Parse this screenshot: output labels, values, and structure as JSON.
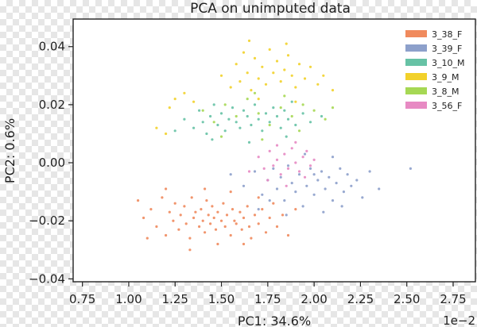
{
  "chart_data": {
    "type": "scatter",
    "title": "PCA on unimputed data",
    "xlabel": "PC1: 34.6%",
    "ylabel": "PC2: 0.6%",
    "x_offset_label": "1e−2",
    "xlim": [
      0.7,
      2.87
    ],
    "ylim": [
      -0.041,
      0.0495
    ],
    "xticks": [
      0.75,
      1.0,
      1.25,
      1.5,
      1.75,
      2.0,
      2.25,
      2.5,
      2.75
    ],
    "xtick_labels": [
      "0.75",
      "1.00",
      "1.25",
      "1.50",
      "1.75",
      "2.00",
      "2.25",
      "2.50",
      "2.75"
    ],
    "yticks": [
      -0.04,
      -0.02,
      0.0,
      0.02,
      0.04
    ],
    "ytick_labels": [
      "−0.04",
      "−0.02",
      "0.00",
      "0.02",
      "0.04"
    ],
    "grid": false,
    "legend_position": "top-right",
    "series": [
      {
        "name": "3_38_F",
        "color": "#f08a5d",
        "points": [
          [
            1.05,
            -0.013
          ],
          [
            1.08,
            -0.019
          ],
          [
            1.12,
            -0.016
          ],
          [
            1.15,
            -0.022
          ],
          [
            1.18,
            -0.012
          ],
          [
            1.2,
            -0.025
          ],
          [
            1.22,
            -0.017
          ],
          [
            1.24,
            -0.02
          ],
          [
            1.25,
            -0.014
          ],
          [
            1.27,
            -0.023
          ],
          [
            1.28,
            -0.018
          ],
          [
            1.3,
            -0.015
          ],
          [
            1.31,
            -0.021
          ],
          [
            1.33,
            -0.026
          ],
          [
            1.34,
            -0.012
          ],
          [
            1.35,
            -0.019
          ],
          [
            1.36,
            -0.017
          ],
          [
            1.38,
            -0.022
          ],
          [
            1.39,
            -0.016
          ],
          [
            1.4,
            -0.02
          ],
          [
            1.41,
            -0.024
          ],
          [
            1.42,
            -0.013
          ],
          [
            1.43,
            -0.018
          ],
          [
            1.44,
            -0.021
          ],
          [
            1.45,
            -0.015
          ],
          [
            1.46,
            -0.019
          ],
          [
            1.47,
            -0.023
          ],
          [
            1.48,
            -0.017
          ],
          [
            1.5,
            -0.02
          ],
          [
            1.51,
            -0.014
          ],
          [
            1.52,
            -0.022
          ],
          [
            1.53,
            -0.018
          ],
          [
            1.55,
            -0.025
          ],
          [
            1.56,
            -0.016
          ],
          [
            1.57,
            -0.02
          ],
          [
            1.58,
            -0.021
          ],
          [
            1.6,
            -0.017
          ],
          [
            1.61,
            -0.023
          ],
          [
            1.62,
            -0.019
          ],
          [
            1.64,
            -0.015
          ],
          [
            1.65,
            -0.022
          ],
          [
            1.66,
            -0.026
          ],
          [
            1.68,
            -0.018
          ],
          [
            1.7,
            -0.021
          ],
          [
            1.72,
            -0.016
          ],
          [
            1.74,
            -0.024
          ],
          [
            1.76,
            -0.019
          ],
          [
            1.78,
            -0.014
          ],
          [
            1.8,
            -0.022
          ],
          [
            1.83,
            -0.018
          ],
          [
            1.86,
            -0.025
          ],
          [
            1.9,
            -0.016
          ],
          [
            1.33,
            -0.03
          ],
          [
            1.48,
            -0.028
          ],
          [
            1.62,
            -0.028
          ],
          [
            1.2,
            -0.009
          ],
          [
            1.41,
            -0.009
          ],
          [
            1.55,
            -0.01
          ],
          [
            1.7,
            -0.012
          ],
          [
            1.1,
            -0.026
          ]
        ]
      },
      {
        "name": "3_39_F",
        "color": "#8da0cb",
        "points": [
          [
            1.55,
            -0.004
          ],
          [
            1.62,
            -0.008
          ],
          [
            1.68,
            -0.003
          ],
          [
            1.72,
            -0.011
          ],
          [
            1.75,
            -0.006
          ],
          [
            1.78,
            -0.002
          ],
          [
            1.8,
            -0.009
          ],
          [
            1.82,
            -0.005
          ],
          [
            1.84,
            -0.013
          ],
          [
            1.86,
            -0.001
          ],
          [
            1.88,
            -0.007
          ],
          [
            1.9,
            -0.01
          ],
          [
            1.92,
            -0.004
          ],
          [
            1.94,
            -0.015
          ],
          [
            1.96,
            -0.008
          ],
          [
            1.98,
            -0.002
          ],
          [
            2.0,
            -0.011
          ],
          [
            2.02,
            -0.006
          ],
          [
            2.04,
            -0.003
          ],
          [
            2.06,
            -0.009
          ],
          [
            2.08,
            -0.005
          ],
          [
            2.1,
            -0.013
          ],
          [
            2.12,
            -0.007
          ],
          [
            2.14,
            -0.002
          ],
          [
            2.16,
            -0.01
          ],
          [
            2.18,
            -0.004
          ],
          [
            2.2,
            -0.008
          ],
          [
            2.23,
            -0.006
          ],
          [
            2.26,
            -0.012
          ],
          [
            2.3,
            -0.003
          ],
          [
            2.35,
            -0.009
          ],
          [
            1.7,
            -0.016
          ],
          [
            1.85,
            -0.018
          ],
          [
            2.05,
            -0.017
          ],
          [
            1.95,
            0.003
          ],
          [
            2.1,
            0.002
          ],
          [
            1.76,
            -0.013
          ],
          [
            2.0,
            -0.004
          ],
          [
            2.15,
            -0.015
          ],
          [
            2.52,
            -0.002
          ]
        ]
      },
      {
        "name": "3_10_M",
        "color": "#66c2a5",
        "points": [
          [
            1.3,
            0.015
          ],
          [
            1.35,
            0.012
          ],
          [
            1.38,
            0.018
          ],
          [
            1.4,
            0.014
          ],
          [
            1.42,
            0.01
          ],
          [
            1.44,
            0.016
          ],
          [
            1.46,
            0.02
          ],
          [
            1.48,
            0.013
          ],
          [
            1.5,
            0.017
          ],
          [
            1.52,
            0.011
          ],
          [
            1.54,
            0.015
          ],
          [
            1.56,
            0.019
          ],
          [
            1.58,
            0.014
          ],
          [
            1.6,
            0.012
          ],
          [
            1.62,
            0.018
          ],
          [
            1.64,
            0.016
          ],
          [
            1.66,
            0.013
          ],
          [
            1.68,
            0.02
          ],
          [
            1.7,
            0.015
          ],
          [
            1.72,
            0.011
          ],
          [
            1.74,
            0.017
          ],
          [
            1.76,
            0.014
          ],
          [
            1.78,
            0.019
          ],
          [
            1.8,
            0.016
          ],
          [
            1.82,
            0.012
          ],
          [
            1.84,
            0.018
          ],
          [
            1.86,
            0.015
          ],
          [
            1.88,
            0.021
          ],
          [
            1.9,
            0.013
          ],
          [
            1.94,
            0.017
          ],
          [
            1.98,
            0.014
          ],
          [
            2.04,
            0.016
          ],
          [
            1.25,
            0.011
          ],
          [
            1.45,
            0.008
          ],
          [
            1.65,
            0.007
          ],
          [
            1.85,
            0.009
          ]
        ]
      },
      {
        "name": "3_9_M",
        "color": "#f2d12b",
        "points": [
          [
            1.5,
            0.03
          ],
          [
            1.55,
            0.026
          ],
          [
            1.58,
            0.034
          ],
          [
            1.6,
            0.028
          ],
          [
            1.62,
            0.038
          ],
          [
            1.64,
            0.031
          ],
          [
            1.66,
            0.025
          ],
          [
            1.68,
            0.036
          ],
          [
            1.7,
            0.029
          ],
          [
            1.72,
            0.033
          ],
          [
            1.74,
            0.027
          ],
          [
            1.76,
            0.039
          ],
          [
            1.78,
            0.031
          ],
          [
            1.8,
            0.035
          ],
          [
            1.82,
            0.028
          ],
          [
            1.84,
            0.032
          ],
          [
            1.86,
            0.037
          ],
          [
            1.88,
            0.03
          ],
          [
            1.9,
            0.026
          ],
          [
            1.92,
            0.034
          ],
          [
            1.95,
            0.029
          ],
          [
            1.98,
            0.033
          ],
          [
            2.02,
            0.027
          ],
          [
            2.05,
            0.03
          ],
          [
            1.15,
            0.012
          ],
          [
            1.2,
            0.01
          ],
          [
            1.25,
            0.022
          ],
          [
            1.3,
            0.024
          ],
          [
            1.35,
            0.021
          ],
          [
            1.22,
            0.019
          ],
          [
            1.65,
            0.042
          ],
          [
            1.85,
            0.041
          ],
          [
            1.7,
            0.022
          ],
          [
            1.9,
            0.021
          ],
          [
            2.1,
            0.025
          ]
        ]
      },
      {
        "name": "3_8_M",
        "color": "#a6d854",
        "points": [
          [
            1.4,
            0.018
          ],
          [
            1.46,
            0.014
          ],
          [
            1.52,
            0.02
          ],
          [
            1.58,
            0.016
          ],
          [
            1.64,
            0.022
          ],
          [
            1.7,
            0.017
          ],
          [
            1.76,
            0.013
          ],
          [
            1.82,
            0.019
          ],
          [
            1.88,
            0.016
          ],
          [
            1.94,
            0.02
          ],
          [
            2.0,
            0.018
          ],
          [
            2.06,
            0.015
          ],
          [
            1.5,
            0.009
          ],
          [
            1.72,
            0.008
          ],
          [
            1.92,
            0.011
          ],
          [
            1.68,
            0.024
          ],
          [
            1.84,
            0.023
          ],
          [
            2.1,
            0.019
          ]
        ]
      },
      {
        "name": "3_56_F",
        "color": "#e78ac3",
        "points": [
          [
            1.7,
            0.002
          ],
          [
            1.73,
            -0.002
          ],
          [
            1.76,
            0.004
          ],
          [
            1.78,
            -0.001
          ],
          [
            1.8,
            0.001
          ],
          [
            1.82,
            -0.004
          ],
          [
            1.84,
            0.003
          ],
          [
            1.86,
            -0.002
          ],
          [
            1.88,
            0.005
          ],
          [
            1.9,
            0.0
          ],
          [
            1.92,
            -0.003
          ],
          [
            1.94,
            0.002
          ],
          [
            1.96,
            0.004
          ],
          [
            1.98,
            -0.001
          ],
          [
            2.0,
            0.001
          ],
          [
            1.75,
            -0.006
          ],
          [
            1.85,
            -0.008
          ],
          [
            1.95,
            -0.005
          ],
          [
            1.8,
            0.006
          ],
          [
            1.9,
            0.007
          ],
          [
            1.65,
            -0.003
          ]
        ]
      }
    ]
  }
}
